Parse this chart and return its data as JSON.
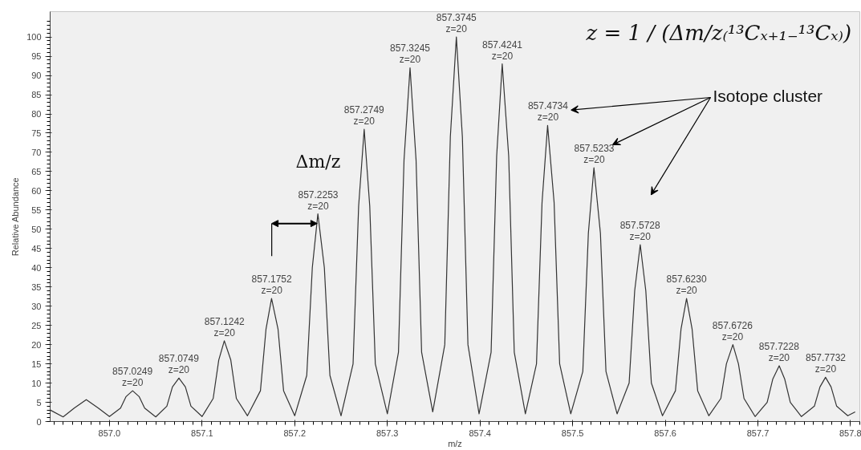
{
  "chart_data": {
    "type": "line",
    "xlabel": "m/z",
    "ylabel": "Relative Abundance",
    "x": [
      856.936,
      856.95,
      856.962,
      856.975,
      856.988,
      857.0,
      857.012,
      857.018,
      857.025,
      857.032,
      857.038,
      857.05,
      857.062,
      857.068,
      857.075,
      857.082,
      857.088,
      857.1,
      857.112,
      857.118,
      857.124,
      857.131,
      857.137,
      857.149,
      857.163,
      857.169,
      857.175,
      857.182,
      857.188,
      857.2,
      857.213,
      857.219,
      857.225,
      857.232,
      857.238,
      857.25,
      857.263,
      857.269,
      857.275,
      857.281,
      857.287,
      857.3,
      857.312,
      857.318,
      857.3245,
      857.331,
      857.337,
      857.349,
      857.362,
      857.368,
      857.3745,
      857.381,
      857.387,
      857.399,
      857.412,
      857.418,
      857.424,
      857.431,
      857.437,
      857.449,
      857.461,
      857.467,
      857.473,
      857.48,
      857.486,
      857.498,
      857.511,
      857.517,
      857.523,
      857.53,
      857.536,
      857.548,
      857.561,
      857.567,
      857.573,
      857.579,
      857.585,
      857.597,
      857.611,
      857.617,
      857.623,
      857.629,
      857.635,
      857.647,
      857.66,
      857.666,
      857.673,
      857.679,
      857.685,
      857.697,
      857.71,
      857.716,
      857.723,
      857.729,
      857.735,
      857.747,
      857.761,
      857.767,
      857.773,
      857.779,
      857.785,
      857.797,
      857.805
    ],
    "series": [
      {
        "color": "#333333",
        "values": [
          3,
          1.2,
          3.5,
          5.7,
          3.5,
          1.3,
          3.5,
          6.5,
          8,
          6.5,
          3.5,
          1.2,
          4,
          9,
          11.3,
          9,
          4,
          1.3,
          6,
          16,
          21,
          16,
          6,
          1.5,
          8,
          24,
          32,
          24,
          8,
          1.5,
          12,
          40,
          54,
          40,
          12,
          1.5,
          15,
          56,
          76,
          56,
          15,
          2,
          18,
          68,
          92,
          68,
          18,
          2.5,
          20,
          74,
          100,
          74,
          20,
          2,
          18,
          69,
          93,
          69,
          18,
          2,
          15,
          57,
          77,
          57,
          15,
          2,
          13,
          49,
          66,
          49,
          13,
          2,
          10,
          34,
          46,
          34,
          10,
          1.5,
          8,
          24,
          32,
          24,
          8,
          1.5,
          6,
          15,
          20,
          15,
          6,
          1.3,
          5,
          11,
          14.5,
          11,
          5,
          1.3,
          4,
          9,
          11.5,
          9,
          4,
          1.5,
          2.5
        ]
      }
    ],
    "xlim": [
      856.936,
      857.81
    ],
    "ylim": [
      0,
      106.6
    ],
    "xticks": [
      {
        "value": 857.0,
        "label": "857.0"
      },
      857.1,
      857.2,
      857.3,
      857.4,
      857.5,
      857.6,
      857.7,
      857.8
    ],
    "yticks": [
      0,
      5,
      10,
      15,
      20,
      25,
      30,
      35,
      40,
      45,
      50,
      55,
      60,
      65,
      70,
      75,
      80,
      85,
      90,
      95,
      100
    ],
    "grid": false,
    "marker": "none",
    "line_style": "solid",
    "annotations": [
      {
        "text": "857.0249\nz=20",
        "x": 857.0249,
        "y": 8
      },
      {
        "text": "857.0749\nz=20",
        "x": 857.0749,
        "y": 11.3
      },
      {
        "text": "857.1242\nz=20",
        "x": 857.1242,
        "y": 21
      },
      {
        "text": "857.1752\nz=20",
        "x": 857.1752,
        "y": 32
      },
      {
        "text": "857.2253\nz=20",
        "x": 857.2253,
        "y": 54
      },
      {
        "text": "857.2749\nz=20",
        "x": 857.2749,
        "y": 76
      },
      {
        "text": "857.3245\nz=20",
        "x": 857.3245,
        "y": 92
      },
      {
        "text": "857.3745\nz=20",
        "x": 857.3745,
        "y": 100
      },
      {
        "text": "857.4241\nz=20",
        "x": 857.4241,
        "y": 93
      },
      {
        "text": "857.4734\nz=20",
        "x": 857.4734,
        "y": 77
      },
      {
        "text": "857.5233\nz=20",
        "x": 857.5233,
        "y": 66
      },
      {
        "text": "857.5728\nz=20",
        "x": 857.5728,
        "y": 46
      },
      {
        "text": "857.6230\nz=20",
        "x": 857.623,
        "y": 32
      },
      {
        "text": "857.6726\nz=20",
        "x": 857.6726,
        "y": 20
      },
      {
        "text": "857.7228\nz=20",
        "x": 857.7228,
        "y": 14.5
      },
      {
        "text": "857.7732\nz=20",
        "x": 857.7732,
        "y": 11.5
      },
      "Δm/z",
      "Isotope cluster",
      "z = 1 / (Δm/z₍¹³Cₓ₊₁₋¹³Cₓ₎)"
    ]
  }
}
